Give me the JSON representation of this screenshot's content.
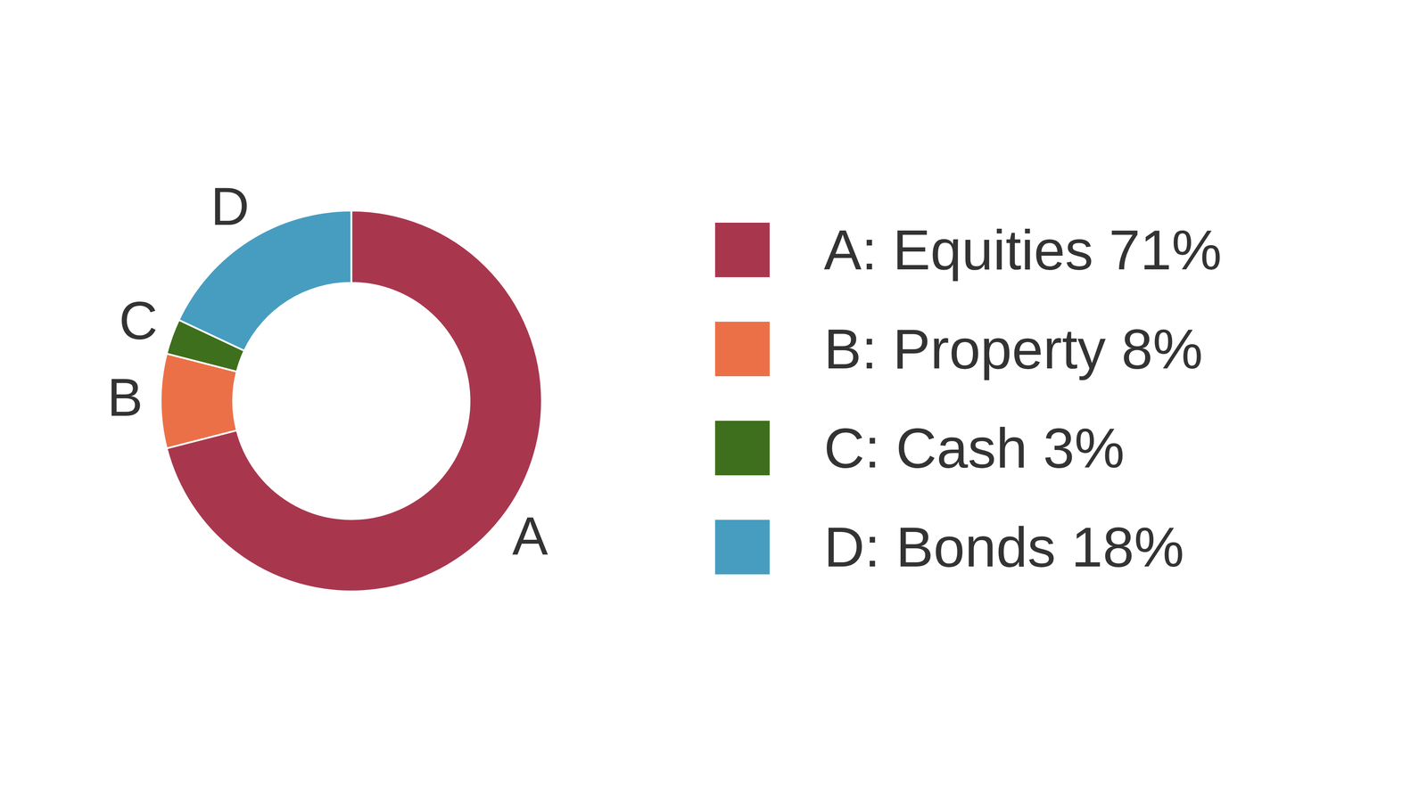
{
  "chart_data": {
    "type": "doughnut",
    "categories": [
      "A: Equities 71%",
      "B: Property 8%",
      "C: Cash 3%",
      "D: Bonds 18%"
    ],
    "slice_labels": [
      "A",
      "B",
      "C",
      "D"
    ],
    "values": [
      71,
      8,
      3,
      18
    ],
    "colors": [
      "#a8374e",
      "#ec7047",
      "#3e6f1c",
      "#479dc0"
    ],
    "legend": "right"
  }
}
